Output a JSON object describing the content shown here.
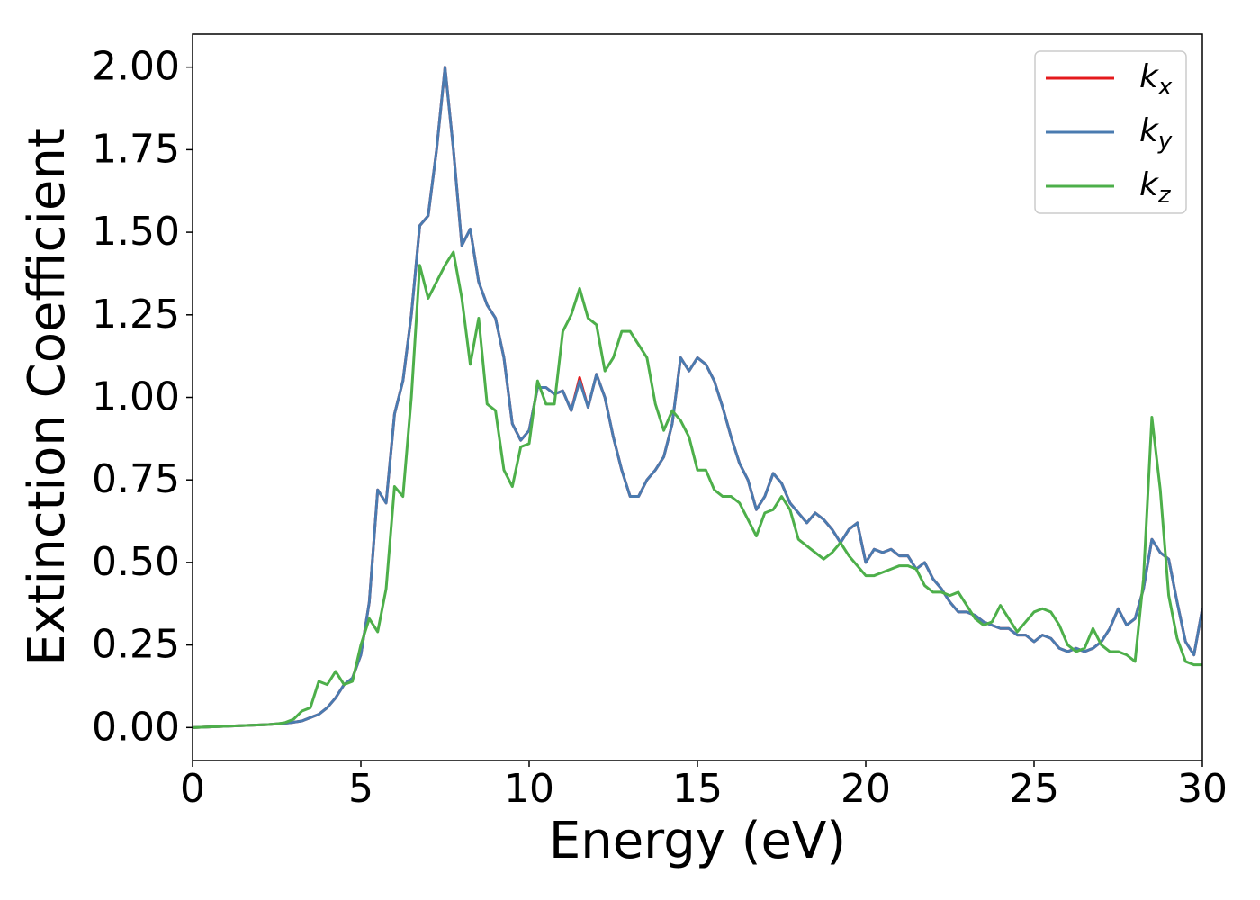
{
  "chart_data": {
    "type": "line",
    "xlabel": "Energy (eV)",
    "ylabel": "Extinction Coefficient",
    "x": [
      0,
      0.25,
      0.5,
      0.75,
      1,
      1.25,
      1.5,
      1.75,
      2,
      2.25,
      2.5,
      2.75,
      3,
      3.25,
      3.5,
      3.75,
      4,
      4.25,
      4.5,
      4.75,
      5,
      5.25,
      5.5,
      5.75,
      6,
      6.25,
      6.5,
      6.75,
      7,
      7.25,
      7.5,
      7.75,
      8,
      8.25,
      8.5,
      8.75,
      9,
      9.25,
      9.5,
      9.75,
      10,
      10.25,
      10.5,
      10.75,
      11,
      11.25,
      11.5,
      11.75,
      12,
      12.25,
      12.5,
      12.75,
      13,
      13.25,
      13.5,
      13.75,
      14,
      14.25,
      14.5,
      14.75,
      15,
      15.25,
      15.5,
      15.75,
      16,
      16.25,
      16.5,
      16.75,
      17,
      17.25,
      17.5,
      17.75,
      18,
      18.25,
      18.5,
      18.75,
      19,
      19.25,
      19.5,
      19.75,
      20,
      20.25,
      20.5,
      20.75,
      21,
      21.25,
      21.5,
      21.75,
      22,
      22.25,
      22.5,
      22.75,
      23,
      23.25,
      23.5,
      23.75,
      24,
      24.25,
      24.5,
      24.75,
      25,
      25.25,
      25.5,
      25.75,
      26,
      26.25,
      26.5,
      26.75,
      27,
      27.25,
      27.5,
      27.75,
      28,
      28.25,
      28.5,
      28.75,
      29,
      29.25,
      29.5,
      29.75,
      30
    ],
    "series": [
      {
        "name": "kx",
        "color": "#e41a1c",
        "values": [
          0,
          0.001,
          0.002,
          0.003,
          0.004,
          0.005,
          0.006,
          0.007,
          0.008,
          0.009,
          0.011,
          0.013,
          0.016,
          0.02,
          0.03,
          0.04,
          0.06,
          0.09,
          0.13,
          0.15,
          0.22,
          0.38,
          0.72,
          0.68,
          0.95,
          1.05,
          1.25,
          1.52,
          1.55,
          1.75,
          2.0,
          1.75,
          1.46,
          1.51,
          1.35,
          1.28,
          1.24,
          1.12,
          0.92,
          0.87,
          0.9,
          1.03,
          1.03,
          1.01,
          1.02,
          0.96,
          1.06,
          0.97,
          1.07,
          1.0,
          0.88,
          0.78,
          0.7,
          0.7,
          0.75,
          0.78,
          0.82,
          0.92,
          1.12,
          1.08,
          1.12,
          1.1,
          1.05,
          0.97,
          0.88,
          0.8,
          0.75,
          0.66,
          0.7,
          0.77,
          0.74,
          0.68,
          0.65,
          0.62,
          0.65,
          0.63,
          0.6,
          0.56,
          0.6,
          0.62,
          0.5,
          0.54,
          0.53,
          0.54,
          0.52,
          0.52,
          0.48,
          0.5,
          0.45,
          0.42,
          0.38,
          0.35,
          0.35,
          0.34,
          0.32,
          0.31,
          0.3,
          0.3,
          0.28,
          0.28,
          0.26,
          0.28,
          0.27,
          0.24,
          0.23,
          0.24,
          0.23,
          0.24,
          0.26,
          0.3,
          0.36,
          0.31,
          0.33,
          0.42,
          0.57,
          0.53,
          0.51,
          0.38,
          0.26,
          0.22,
          0.36
        ]
      },
      {
        "name": "ky",
        "color": "#4a7bb0",
        "values": [
          0,
          0.001,
          0.002,
          0.003,
          0.004,
          0.005,
          0.006,
          0.007,
          0.008,
          0.009,
          0.011,
          0.013,
          0.016,
          0.02,
          0.03,
          0.04,
          0.06,
          0.09,
          0.13,
          0.15,
          0.22,
          0.38,
          0.72,
          0.68,
          0.95,
          1.05,
          1.25,
          1.52,
          1.55,
          1.75,
          2.0,
          1.75,
          1.46,
          1.51,
          1.35,
          1.28,
          1.24,
          1.12,
          0.92,
          0.87,
          0.9,
          1.03,
          1.03,
          1.01,
          1.02,
          0.96,
          1.05,
          0.97,
          1.07,
          1.0,
          0.88,
          0.78,
          0.7,
          0.7,
          0.75,
          0.78,
          0.82,
          0.92,
          1.12,
          1.08,
          1.12,
          1.1,
          1.05,
          0.97,
          0.88,
          0.8,
          0.75,
          0.66,
          0.7,
          0.77,
          0.74,
          0.68,
          0.65,
          0.62,
          0.65,
          0.63,
          0.6,
          0.56,
          0.6,
          0.62,
          0.5,
          0.54,
          0.53,
          0.54,
          0.52,
          0.52,
          0.48,
          0.5,
          0.45,
          0.42,
          0.38,
          0.35,
          0.35,
          0.34,
          0.32,
          0.31,
          0.3,
          0.3,
          0.28,
          0.28,
          0.26,
          0.28,
          0.27,
          0.24,
          0.23,
          0.24,
          0.23,
          0.24,
          0.26,
          0.3,
          0.36,
          0.31,
          0.33,
          0.42,
          0.57,
          0.53,
          0.51,
          0.38,
          0.26,
          0.22,
          0.36
        ]
      },
      {
        "name": "kz",
        "color": "#4daf4a",
        "values": [
          0,
          0.001,
          0.002,
          0.003,
          0.004,
          0.005,
          0.006,
          0.007,
          0.008,
          0.009,
          0.011,
          0.015,
          0.025,
          0.05,
          0.06,
          0.14,
          0.13,
          0.17,
          0.13,
          0.14,
          0.25,
          0.33,
          0.29,
          0.42,
          0.73,
          0.7,
          1.0,
          1.4,
          1.3,
          1.35,
          1.4,
          1.44,
          1.3,
          1.1,
          1.24,
          0.98,
          0.96,
          0.78,
          0.73,
          0.85,
          0.86,
          1.05,
          0.98,
          0.98,
          1.2,
          1.25,
          1.33,
          1.24,
          1.22,
          1.08,
          1.12,
          1.2,
          1.2,
          1.16,
          1.12,
          0.98,
          0.9,
          0.96,
          0.93,
          0.88,
          0.78,
          0.78,
          0.72,
          0.7,
          0.7,
          0.68,
          0.63,
          0.58,
          0.65,
          0.66,
          0.7,
          0.66,
          0.57,
          0.55,
          0.53,
          0.51,
          0.53,
          0.56,
          0.52,
          0.49,
          0.46,
          0.46,
          0.47,
          0.48,
          0.49,
          0.49,
          0.48,
          0.43,
          0.41,
          0.41,
          0.4,
          0.41,
          0.37,
          0.33,
          0.31,
          0.32,
          0.37,
          0.33,
          0.29,
          0.32,
          0.35,
          0.36,
          0.35,
          0.31,
          0.25,
          0.23,
          0.24,
          0.3,
          0.25,
          0.23,
          0.23,
          0.22,
          0.2,
          0.45,
          0.94,
          0.72,
          0.4,
          0.27,
          0.2,
          0.19,
          0.19
        ]
      }
    ],
    "xlim": [
      0,
      30
    ],
    "xticks": [
      0,
      5,
      10,
      15,
      20,
      25,
      30
    ],
    "ylim": [
      -0.1,
      2.1
    ],
    "yticks": [
      {
        "value": 0,
        "label": "0.00"
      },
      {
        "value": 0.25,
        "label": "0.25"
      },
      {
        "value": 0.5,
        "label": "0.50"
      },
      {
        "value": 0.75,
        "label": "0.75"
      },
      {
        "value": 1,
        "label": "1.00"
      },
      {
        "value": 1.25,
        "label": "1.25"
      },
      {
        "value": 1.5,
        "label": "1.50"
      },
      {
        "value": 1.75,
        "label": "1.75"
      },
      {
        "value": 2,
        "label": "2.00"
      }
    ],
    "legend": "upper right",
    "grid": false
  }
}
